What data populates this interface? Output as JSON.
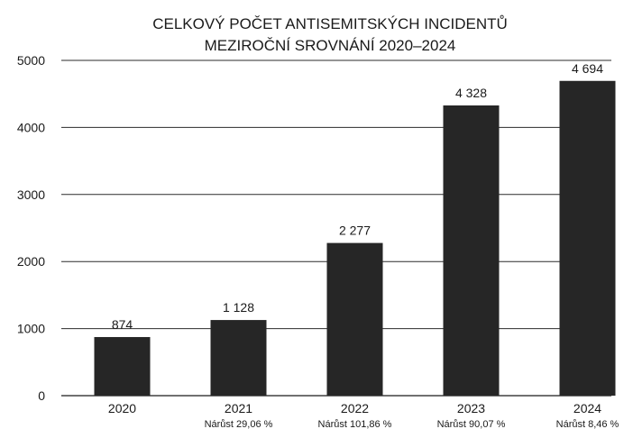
{
  "chart_data": {
    "type": "bar",
    "title": "CELKOVÝ POČET ANTISEMITSKÝCH INCIDENTŮ",
    "subtitle": "MEZIROČNÍ SROVNÁNÍ 2020–2024",
    "xlabel": "",
    "ylabel": "",
    "categories": [
      "2020",
      "2021",
      "2022",
      "2023",
      "2024"
    ],
    "values": [
      874,
      1128,
      2277,
      4328,
      4694
    ],
    "data_labels": [
      "874",
      "1 128",
      "2 277",
      "4 328",
      "4 694"
    ],
    "growth_labels": [
      "",
      "Nárůst 29,06 %",
      "Nárůst 101,86 %",
      "Nárůst 90,07 %",
      "Nárůst 8,46 %"
    ],
    "ylim": [
      0,
      5000
    ],
    "yticks": [
      0,
      1000,
      2000,
      3000,
      4000,
      5000
    ],
    "grid": true,
    "legend": "none",
    "colors": {
      "bar": "#262626",
      "grid": "#2b2b2b",
      "text": "#1a1a1a",
      "background": "#ffffff"
    }
  }
}
